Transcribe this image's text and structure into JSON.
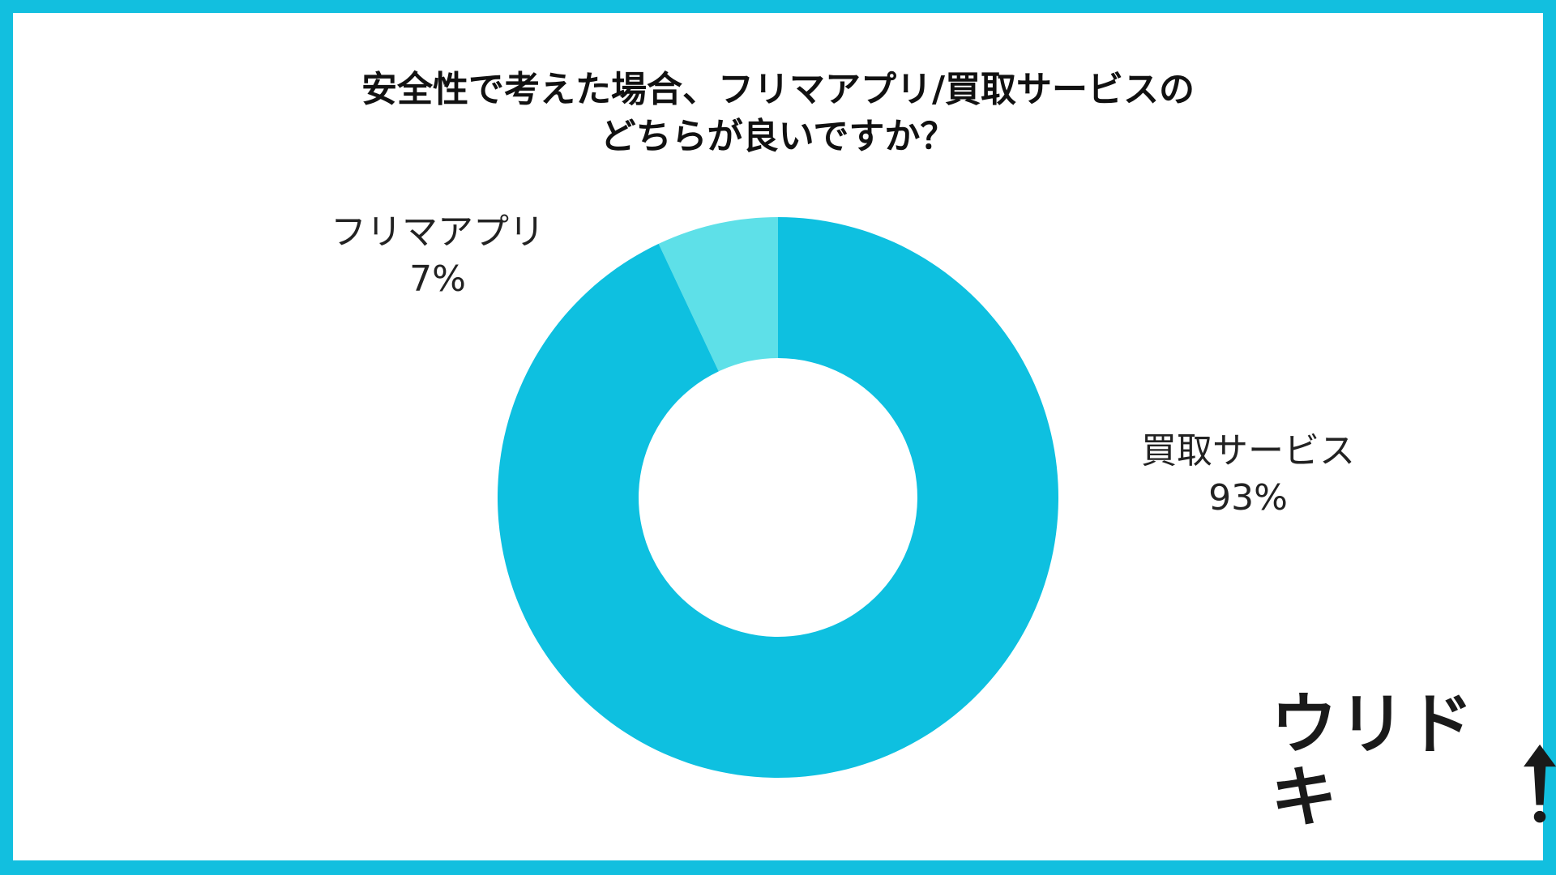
{
  "chart_data": {
    "type": "pie",
    "donut": true,
    "title_lines": [
      "安全性で考えた場合、フリマアプリ/買取サービスの",
      "どちらが良いですか？"
    ],
    "slices": [
      {
        "name": "フリマアプリ",
        "value": 7,
        "label": "7%",
        "color": "#5ee0e8"
      },
      {
        "name": "買取サービス",
        "value": 93,
        "label": "93%",
        "color": "#0ec0e0"
      }
    ],
    "legend": "none",
    "start": "top",
    "direction": "counterclockwise-first-slice"
  },
  "logo": {
    "text": "ウリドキ",
    "icon": "up-arrow-icon"
  },
  "colors": {
    "frame": "#12bfdf",
    "background": "#ffffff"
  }
}
